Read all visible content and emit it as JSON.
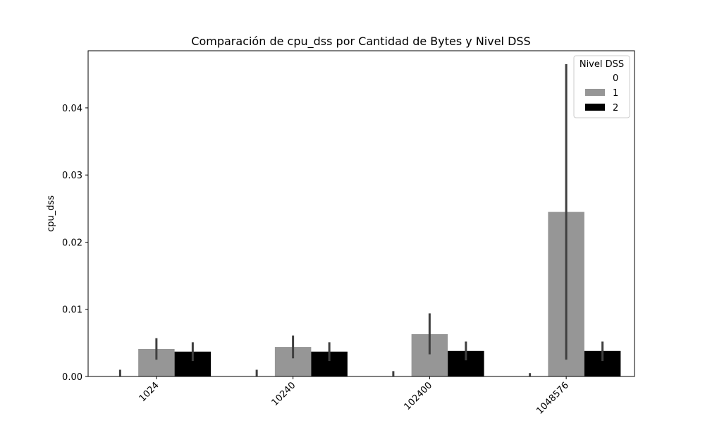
{
  "chart_data": {
    "type": "bar",
    "title": "Comparación de cpu_dss por Cantidad de Bytes y Nivel DSS",
    "xlabel": "",
    "ylabel": "cpu_dss",
    "categories": [
      "1024",
      "10240",
      "102400",
      "1048576"
    ],
    "ylim": [
      0,
      0.0485
    ],
    "yticks": [
      0.0,
      0.01,
      0.02,
      0.03,
      0.04
    ],
    "ytick_labels": [
      "0.00",
      "0.01",
      "0.02",
      "0.03",
      "0.04"
    ],
    "grid": false,
    "legend": {
      "title": "Nivel DSS",
      "placement": "top-right"
    },
    "series": [
      {
        "name": "0",
        "color": "#ffffff",
        "values": [
          0.0,
          0.0,
          0.0,
          0.0
        ],
        "err_low": [
          0.0,
          0.0,
          0.0,
          0.0
        ],
        "err_high": [
          0.001,
          0.001,
          0.0008,
          0.0005
        ]
      },
      {
        "name": "1",
        "color": "#969696",
        "values": [
          0.0041,
          0.0044,
          0.0063,
          0.0245
        ],
        "err_low": [
          0.0025,
          0.0027,
          0.0033,
          0.0025
        ],
        "err_high": [
          0.0057,
          0.0061,
          0.0094,
          0.0465
        ]
      },
      {
        "name": "2",
        "color": "#000000",
        "values": [
          0.0037,
          0.0037,
          0.0038,
          0.0038
        ],
        "err_low": [
          0.0023,
          0.0023,
          0.0024,
          0.0023
        ],
        "err_high": [
          0.0051,
          0.0051,
          0.0052,
          0.0052
        ]
      }
    ],
    "error_bar_color": "#3f3f3f"
  }
}
